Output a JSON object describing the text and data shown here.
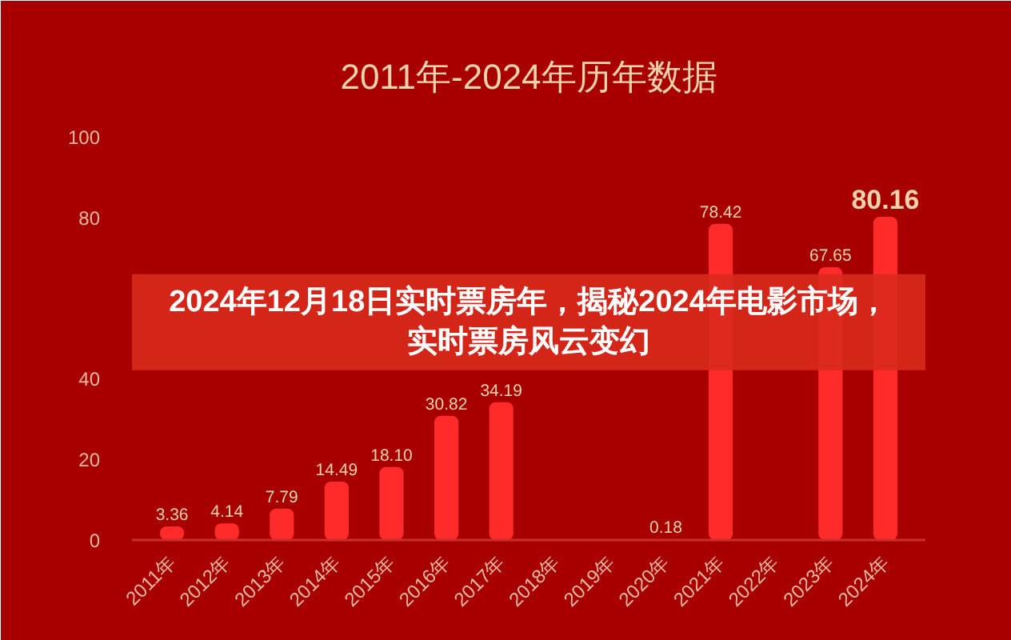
{
  "chart_data": {
    "type": "bar",
    "title": "2011年-2024年历年数据",
    "annotations": [
      "2024年12月18日实时票房年，揭秘2024年电影市场，实时票房风云变幻"
    ],
    "categories": [
      "2011年",
      "2012年",
      "2013年",
      "2014年",
      "2015年",
      "2016年",
      "2017年",
      "2018年",
      "2019年",
      "2020年",
      "2021年",
      "2022年",
      "2023年",
      "2024年"
    ],
    "values": [
      3.36,
      4.14,
      7.79,
      14.49,
      18.1,
      30.82,
      34.19,
      null,
      null,
      0.18,
      78.42,
      null,
      67.65,
      80.16
    ],
    "color": "#ff2b2b",
    "value_labels": [
      "3.36",
      "4.14",
      "7.79",
      "14.49",
      "18.10",
      "30.82",
      "34.19",
      null,
      null,
      "0.18",
      "78.42",
      null,
      "67.65",
      "80.16"
    ],
    "ylim": [
      0,
      100
    ],
    "yticks": [
      0,
      20,
      40,
      80,
      100
    ]
  }
}
